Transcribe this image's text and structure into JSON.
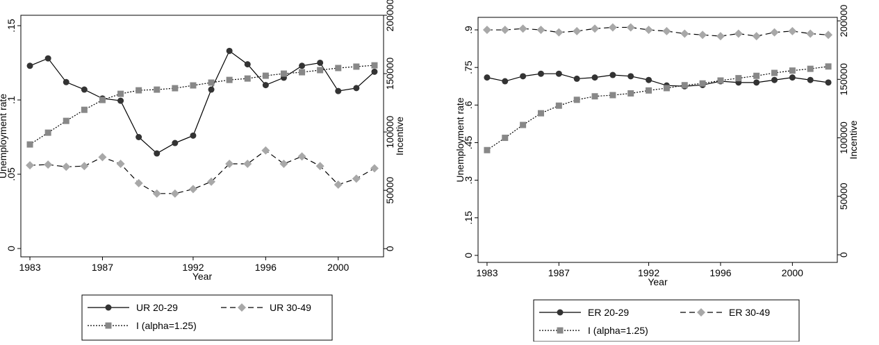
{
  "chart_data": [
    {
      "type": "line",
      "x_label": "Year",
      "y_label": "Unemployment rate",
      "y2_label": "Incentive",
      "x": [
        1983,
        1984,
        1985,
        1986,
        1987,
        1988,
        1989,
        1990,
        1991,
        1992,
        1993,
        1994,
        1995,
        1996,
        1997,
        1998,
        1999,
        2000,
        2001,
        2002
      ],
      "xlim": [
        1982.5,
        2002.5
      ],
      "xticks": [
        1983,
        1987,
        1992,
        1996,
        2000
      ],
      "ylim": [
        -0.0056,
        0.157
      ],
      "yticks": [
        {
          "value": 0,
          "label": "0"
        },
        {
          "value": 0.05,
          "label": ".05"
        },
        {
          "value": 0.1,
          "label": ".1"
        },
        {
          "value": 0.15,
          "label": ".15"
        }
      ],
      "y2lim": [
        -7000,
        200000
      ],
      "y2ticks": [
        0,
        50000,
        100000,
        150000,
        200000
      ],
      "legend": "below",
      "series": [
        {
          "name": "UR 20-29",
          "color": "#333333",
          "marker": "circle",
          "dash": "solid",
          "values": [
            0.123,
            0.128,
            0.112,
            0.107,
            0.101,
            0.0995,
            0.075,
            0.064,
            0.071,
            0.076,
            0.107,
            0.133,
            0.124,
            0.11,
            0.115,
            0.123,
            0.125,
            0.106,
            0.108,
            0.119
          ]
        },
        {
          "name": "UR 30-49",
          "color": "#a8a8a8",
          "marker": "diamond",
          "dash": "dashed",
          "values": [
            0.056,
            0.0565,
            0.055,
            0.0555,
            0.0615,
            0.057,
            0.044,
            0.037,
            0.037,
            0.04,
            0.045,
            0.057,
            0.057,
            0.066,
            0.057,
            0.062,
            0.0555,
            0.043,
            0.047,
            0.054
          ]
        },
        {
          "name": "I (alpha=1.25)",
          "color": "#888888",
          "marker": "square",
          "dash": "dotted",
          "axis": "y2",
          "values": [
            89300,
            99400,
            109500,
            119000,
            127400,
            132700,
            135700,
            136300,
            137500,
            139900,
            142300,
            144600,
            145800,
            148200,
            150000,
            151200,
            153000,
            154800,
            156000,
            157100
          ]
        }
      ]
    },
    {
      "type": "line",
      "x_label": "Year",
      "y_label": "Unemployment rate",
      "y2_label": "Incentive",
      "x": [
        1983,
        1984,
        1985,
        1986,
        1987,
        1988,
        1989,
        1990,
        1991,
        1992,
        1993,
        1994,
        1995,
        1996,
        1997,
        1998,
        1999,
        2000,
        2001,
        2002
      ],
      "xlim": [
        1982.5,
        2002.5
      ],
      "xticks": [
        1983,
        1987,
        1992,
        1996,
        2000
      ],
      "ylim": [
        -0.028,
        0.95
      ],
      "yticks": [
        {
          "value": 0,
          "label": "0"
        },
        {
          "value": 0.15,
          "label": ".15"
        },
        {
          "value": 0.3,
          "label": ".3"
        },
        {
          "value": 0.45,
          "label": ".45"
        },
        {
          "value": 0.6,
          "label": ".6"
        },
        {
          "value": 0.75,
          "label": ".75"
        },
        {
          "value": 0.9,
          "label": ".9"
        }
      ],
      "y2lim": [
        -6500,
        203000
      ],
      "y2ticks": [
        0,
        50000,
        100000,
        150000,
        200000
      ],
      "legend": "below",
      "series": [
        {
          "name": "ER 20-29",
          "color": "#333333",
          "marker": "circle",
          "dash": "solid",
          "values": [
            0.71,
            0.695,
            0.715,
            0.725,
            0.725,
            0.705,
            0.71,
            0.72,
            0.715,
            0.7,
            0.678,
            0.675,
            0.68,
            0.695,
            0.69,
            0.69,
            0.7,
            0.71,
            0.7,
            0.69
          ]
        },
        {
          "name": "ER 30-49",
          "color": "#a8a8a8",
          "marker": "diamond",
          "dash": "dashed",
          "values": [
            0.9,
            0.9,
            0.905,
            0.9,
            0.89,
            0.895,
            0.905,
            0.91,
            0.91,
            0.9,
            0.895,
            0.885,
            0.88,
            0.875,
            0.885,
            0.875,
            0.89,
            0.895,
            0.885,
            0.88
          ]
        },
        {
          "name": "I (alpha=1.25)",
          "color": "#888888",
          "marker": "square",
          "dash": "dotted",
          "axis": "y2",
          "values": [
            89500,
            100000,
            111000,
            121000,
            127500,
            132500,
            135500,
            136500,
            138000,
            140500,
            142500,
            145000,
            146500,
            149000,
            151000,
            153000,
            155500,
            157500,
            159000,
            161000
          ]
        }
      ]
    }
  ]
}
